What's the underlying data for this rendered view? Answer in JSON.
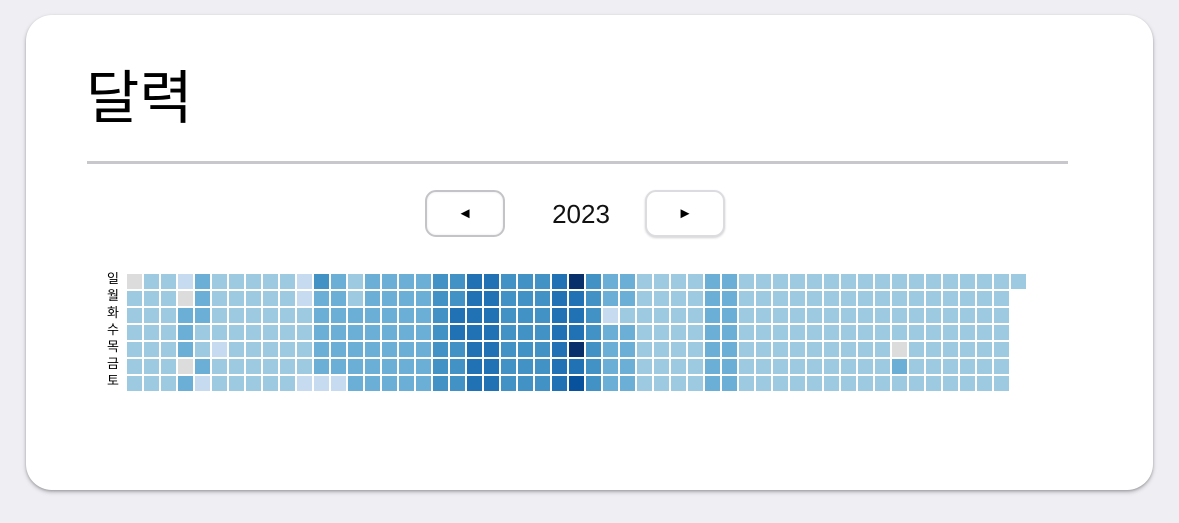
{
  "app": {
    "title": "달력"
  },
  "nav": {
    "prev_label": "◄",
    "next_label": "►",
    "year": "2023"
  },
  "day_labels": [
    "일",
    "월",
    "화",
    "수",
    "목",
    "금",
    "토"
  ],
  "colors": {
    "empty": "#dcdcdc",
    "scale": [
      "#c6dbef",
      "#9ecae1",
      "#6baed6",
      "#4292c6",
      "#2171b5",
      "#08519c",
      "#08306b"
    ]
  },
  "chart_data": {
    "type": "heatmap",
    "title": "",
    "rows": [
      "일",
      "월",
      "화",
      "수",
      "목",
      "금",
      "토"
    ],
    "columns": 53,
    "levels": [
      [
        0,
        2,
        2,
        1,
        3,
        2,
        2,
        2,
        2,
        2,
        1,
        4,
        3,
        2,
        3,
        3,
        3,
        3,
        4,
        4,
        5,
        5,
        4,
        4,
        4,
        5,
        7,
        4,
        3,
        3,
        2,
        2,
        2,
        2,
        3,
        3,
        2,
        2,
        2,
        2,
        2,
        2,
        2,
        2,
        2,
        2,
        2,
        2,
        2,
        2,
        2,
        2,
        2
      ],
      [
        2,
        2,
        2,
        0,
        3,
        2,
        2,
        2,
        2,
        2,
        1,
        3,
        3,
        2,
        3,
        3,
        3,
        3,
        4,
        4,
        5,
        5,
        4,
        4,
        4,
        5,
        5,
        4,
        3,
        3,
        2,
        2,
        2,
        2,
        3,
        3,
        2,
        2,
        2,
        2,
        2,
        2,
        2,
        2,
        2,
        2,
        2,
        2,
        2,
        2,
        2,
        2,
        -1
      ],
      [
        2,
        2,
        2,
        3,
        3,
        2,
        2,
        2,
        2,
        2,
        2,
        3,
        3,
        3,
        3,
        3,
        3,
        3,
        4,
        5,
        5,
        5,
        4,
        4,
        4,
        5,
        5,
        4,
        1,
        2,
        2,
        2,
        2,
        2,
        3,
        3,
        2,
        2,
        2,
        2,
        2,
        2,
        2,
        2,
        2,
        2,
        2,
        2,
        2,
        2,
        2,
        2,
        -1
      ],
      [
        2,
        2,
        2,
        3,
        2,
        2,
        2,
        2,
        2,
        2,
        2,
        3,
        3,
        3,
        3,
        3,
        3,
        3,
        4,
        5,
        5,
        5,
        4,
        4,
        4,
        5,
        5,
        4,
        3,
        3,
        2,
        2,
        2,
        2,
        3,
        3,
        2,
        2,
        2,
        2,
        2,
        2,
        2,
        2,
        2,
        2,
        2,
        2,
        2,
        2,
        2,
        2,
        -1
      ],
      [
        2,
        2,
        2,
        3,
        2,
        1,
        2,
        2,
        2,
        2,
        2,
        3,
        3,
        3,
        3,
        3,
        3,
        3,
        4,
        4,
        5,
        5,
        4,
        4,
        4,
        5,
        7,
        4,
        3,
        3,
        2,
        2,
        2,
        2,
        3,
        3,
        2,
        2,
        2,
        2,
        2,
        2,
        2,
        2,
        2,
        0,
        2,
        2,
        2,
        2,
        2,
        2,
        -1
      ],
      [
        2,
        2,
        2,
        0,
        3,
        2,
        2,
        2,
        2,
        2,
        2,
        3,
        3,
        3,
        3,
        3,
        3,
        3,
        4,
        4,
        5,
        5,
        4,
        4,
        4,
        5,
        5,
        4,
        3,
        3,
        2,
        2,
        2,
        2,
        3,
        3,
        2,
        2,
        2,
        2,
        2,
        2,
        2,
        2,
        2,
        3,
        2,
        2,
        2,
        2,
        2,
        2,
        -1
      ],
      [
        2,
        2,
        2,
        3,
        1,
        2,
        2,
        2,
        2,
        2,
        1,
        1,
        1,
        3,
        3,
        3,
        3,
        3,
        4,
        4,
        5,
        5,
        4,
        4,
        4,
        5,
        6,
        4,
        3,
        3,
        2,
        2,
        2,
        2,
        3,
        3,
        2,
        2,
        2,
        2,
        2,
        2,
        2,
        2,
        2,
        2,
        2,
        2,
        2,
        2,
        2,
        2,
        -1
      ]
    ]
  }
}
